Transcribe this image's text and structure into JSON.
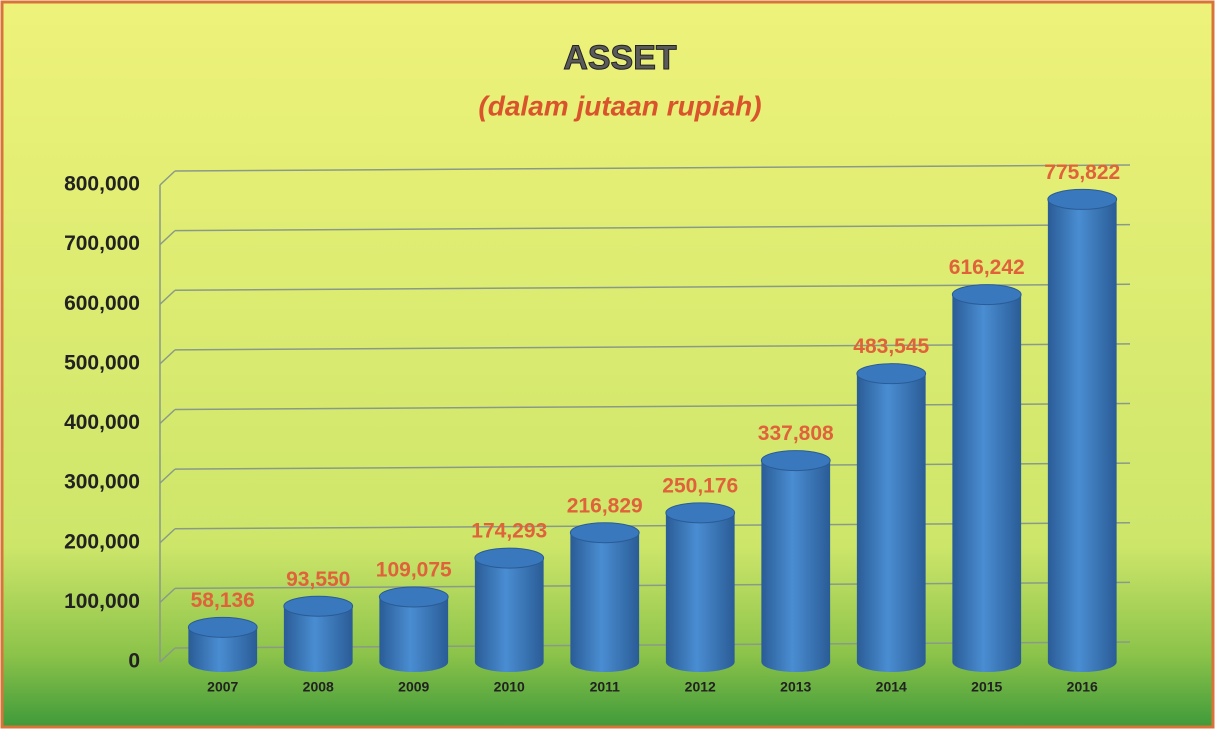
{
  "chart_data": {
    "type": "bar",
    "title": "ASSET",
    "subtitle": "(dalam jutaan rupiah)",
    "categories": [
      "2007",
      "2008",
      "2009",
      "2010",
      "2011",
      "2012",
      "2013",
      "2014",
      "2015",
      "2016"
    ],
    "values": [
      58136,
      93550,
      109075,
      174293,
      216829,
      250176,
      337808,
      483545,
      616242,
      775822
    ],
    "value_labels": [
      "58,136",
      "93,550",
      "109,075",
      "174,293",
      "216,829",
      "250,176",
      "337,808",
      "483,545",
      "616,242",
      "775,822"
    ],
    "color": "#3a78bd",
    "ylim": [
      0,
      800000
    ],
    "yticks": [
      0,
      {
        "value": 100000,
        "label": "100,000"
      },
      {
        "value": 200000,
        "label": "200,000"
      },
      {
        "value": 300000,
        "label": "300,000"
      },
      {
        "value": 400000,
        "label": "400,000"
      },
      {
        "value": 500000,
        "label": "500,000"
      },
      {
        "value": 600000,
        "label": "600,000"
      },
      {
        "value": 700000,
        "label": "700,000"
      },
      {
        "value": 800000,
        "label": "800,000"
      }
    ],
    "grid": true
  }
}
